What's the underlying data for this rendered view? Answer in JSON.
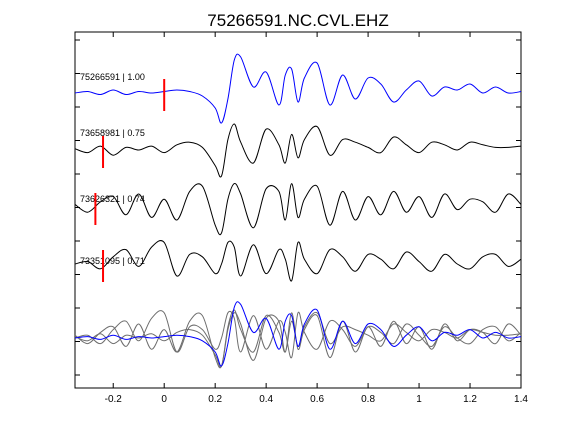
{
  "chart_data": {
    "type": "line",
    "title": "75266591.NC.CVL.EHZ",
    "xlabel": "",
    "ylabel": "",
    "xlim": [
      -0.35,
      1.4
    ],
    "x_ticks": [
      -0.2,
      0,
      0.2,
      0.4,
      0.6,
      0.8,
      1,
      1.2,
      1.4
    ],
    "x_tick_labels": [
      "-0.2",
      "0",
      "0.2",
      "0.4",
      "0.6",
      "0.8",
      "1",
      "1.2",
      "1.4"
    ],
    "grid": false,
    "legend": "none",
    "series": [
      {
        "name": "75266591 | 1.00",
        "color": "#0000ff",
        "pick_time": 0.0,
        "x": [
          -0.35,
          -0.3,
          -0.25,
          -0.2,
          -0.15,
          -0.1,
          -0.05,
          0,
          0.05,
          0.1,
          0.15,
          0.2,
          0.225,
          0.25,
          0.275,
          0.3,
          0.35,
          0.4,
          0.45,
          0.475,
          0.5,
          0.525,
          0.55,
          0.6,
          0.65,
          0.7,
          0.75,
          0.8,
          0.85,
          0.9,
          0.95,
          1.0,
          1.05,
          1.1,
          1.15,
          1.2,
          1.25,
          1.3,
          1.35,
          1.4
        ],
        "y": [
          0,
          0.05,
          -0.05,
          0.1,
          -0.05,
          0.05,
          0,
          0.05,
          0.1,
          0.05,
          -0.1,
          -0.5,
          -1.0,
          -0.2,
          1.1,
          1.2,
          0.2,
          0.7,
          -0.4,
          0.6,
          0.8,
          -0.3,
          0.5,
          1.0,
          -0.4,
          0.6,
          -0.2,
          0.5,
          0.3,
          -0.3,
          0.1,
          0.4,
          -0.1,
          0.2,
          0.1,
          0.3,
          0.0,
          0.2,
          0.0,
          0.05
        ]
      },
      {
        "name": "73658981 | 0.75",
        "color": "#000000",
        "pick_time": -0.24,
        "x": [
          -0.35,
          -0.3,
          -0.25,
          -0.2,
          -0.15,
          -0.1,
          -0.05,
          0,
          0.05,
          0.1,
          0.15,
          0.2,
          0.225,
          0.25,
          0.275,
          0.3,
          0.35,
          0.4,
          0.45,
          0.475,
          0.5,
          0.525,
          0.55,
          0.6,
          0.65,
          0.7,
          0.75,
          0.8,
          0.85,
          0.9,
          0.95,
          1.0,
          1.05,
          1.1,
          1.15,
          1.2,
          1.25,
          1.3,
          1.35,
          1.4
        ],
        "y": [
          0.05,
          -0.1,
          0.15,
          -0.2,
          0.1,
          0.0,
          0.15,
          -0.1,
          0.2,
          0.3,
          0.1,
          -0.6,
          -1.0,
          0.4,
          1.0,
          0.3,
          -0.5,
          0.8,
          0.2,
          -0.5,
          0.6,
          -0.3,
          0.4,
          0.9,
          -0.2,
          0.4,
          0.3,
          0.1,
          -0.1,
          0.5,
          0.2,
          -0.1,
          0.3,
          0.2,
          0.0,
          0.3,
          0.2,
          0.1,
          0.1,
          0.15
        ]
      },
      {
        "name": "73626321 | 0.74",
        "color": "#000000",
        "pick_time": -0.27,
        "x": [
          -0.35,
          -0.3,
          -0.25,
          -0.2,
          -0.15,
          -0.1,
          -0.05,
          0,
          0.05,
          0.1,
          0.15,
          0.2,
          0.225,
          0.25,
          0.275,
          0.3,
          0.35,
          0.4,
          0.45,
          0.475,
          0.5,
          0.525,
          0.55,
          0.6,
          0.65,
          0.7,
          0.75,
          0.8,
          0.85,
          0.9,
          0.95,
          1.0,
          1.05,
          1.1,
          1.15,
          1.2,
          1.25,
          1.3,
          1.35,
          1.4
        ],
        "y": [
          0.1,
          -0.2,
          0.2,
          0.4,
          -0.3,
          0.5,
          -0.4,
          0.3,
          -0.5,
          0.6,
          0.8,
          -0.7,
          -1.0,
          0.3,
          0.9,
          0.5,
          -0.8,
          0.7,
          0.6,
          -0.5,
          0.9,
          -0.4,
          0.3,
          0.8,
          -0.7,
          0.6,
          -0.5,
          0.4,
          -0.3,
          0.6,
          -0.2,
          0.4,
          -0.4,
          0.5,
          -0.1,
          0.3,
          0.2,
          -0.2,
          0.5,
          0.1
        ]
      },
      {
        "name": "73351095 | 0.71",
        "color": "#000000",
        "pick_time": -0.24,
        "x": [
          -0.35,
          -0.3,
          -0.25,
          -0.2,
          -0.15,
          -0.1,
          -0.05,
          0,
          0.05,
          0.1,
          0.15,
          0.2,
          0.225,
          0.25,
          0.275,
          0.3,
          0.35,
          0.4,
          0.45,
          0.475,
          0.5,
          0.525,
          0.55,
          0.6,
          0.65,
          0.7,
          0.75,
          0.8,
          0.85,
          0.9,
          0.95,
          1.0,
          1.05,
          1.1,
          1.15,
          1.2,
          1.25,
          1.3,
          1.35,
          1.4
        ],
        "y": [
          0.0,
          0.1,
          -0.2,
          0.3,
          0.6,
          -0.1,
          0.7,
          0.9,
          -0.5,
          0.4,
          0.3,
          -0.4,
          0.0,
          0.9,
          0.7,
          -0.5,
          0.8,
          -0.4,
          0.6,
          0.2,
          -0.7,
          0.9,
          0.2,
          -0.4,
          0.6,
          0.3,
          -0.3,
          0.4,
          0.2,
          -0.2,
          0.5,
          0.1,
          -0.3,
          0.4,
          0.0,
          -0.2,
          0.3,
          0.4,
          -0.1,
          0.2
        ]
      }
    ]
  }
}
